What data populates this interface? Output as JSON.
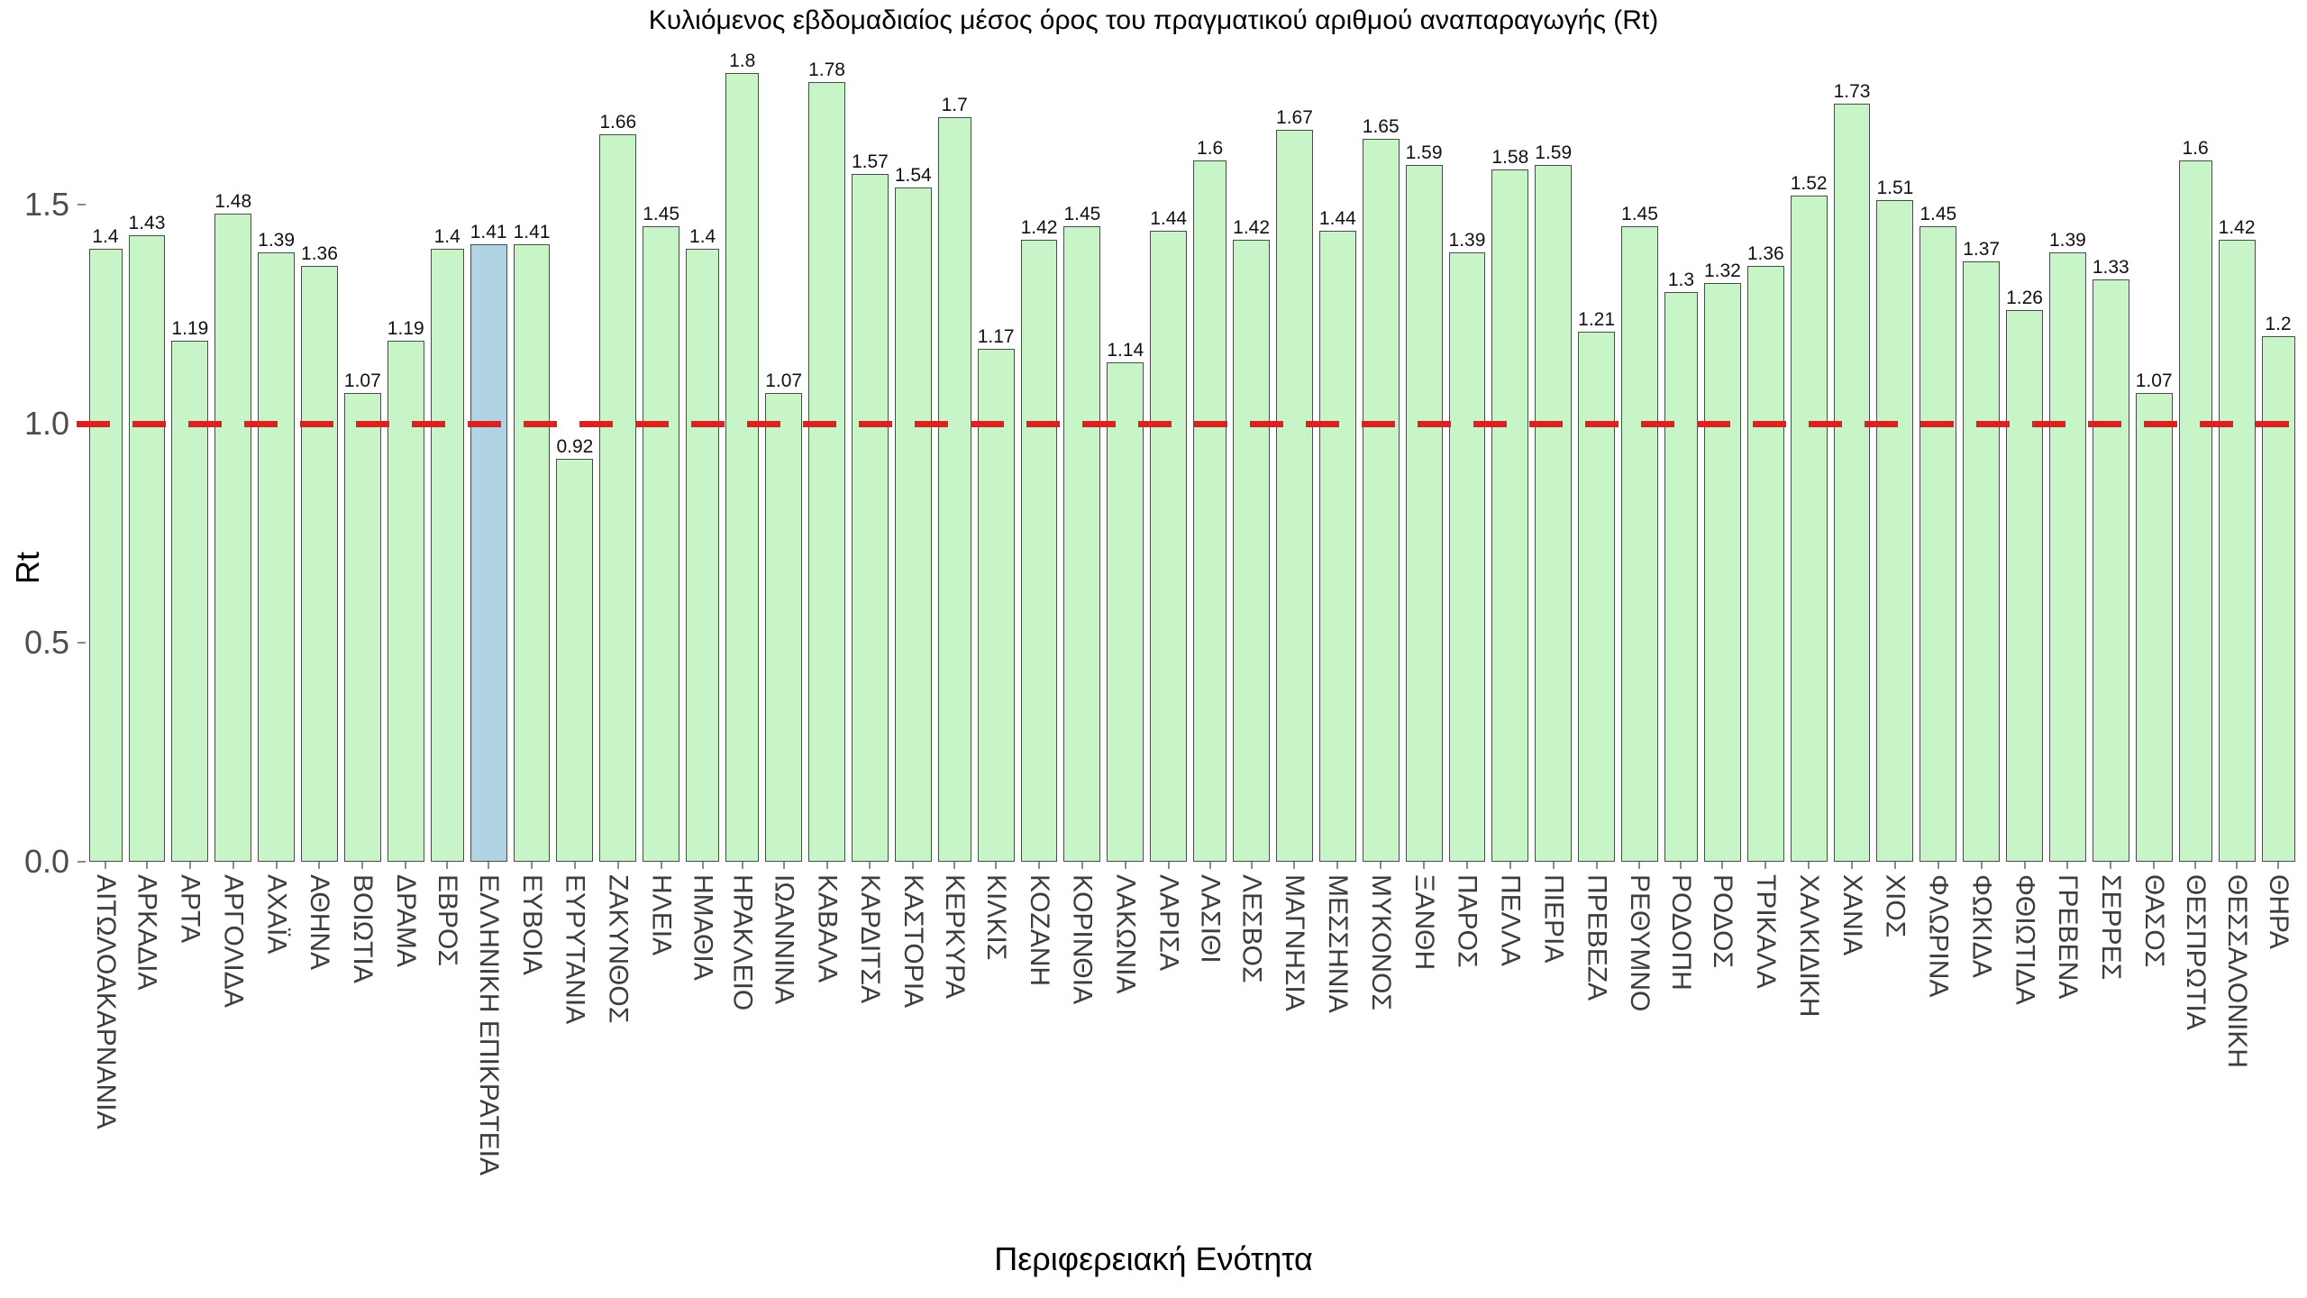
{
  "title": "Κυλιόμενος εβδομαδιαίος μέσος όρος του πραγματικού αριθμού αναπαραγωγής (Rt)",
  "y_axis": {
    "label": "Rt",
    "ticks": [
      "0.0",
      "0.5",
      "1.0",
      "1.5"
    ]
  },
  "x_axis": {
    "label": "Περιφερειακή Ενότητα"
  },
  "reference_line": {
    "value": 1.0,
    "style": "dashed",
    "color": "#dd2020"
  },
  "colors": {
    "bar_fill": "#c8f5c8",
    "bar_border": "#4a4a4a",
    "highlight_fill": "#b0d4e3",
    "reference_red": "#dd2020",
    "tick_text": "#4d4d4d",
    "x_label_text": "#3d3d3d"
  },
  "chart_data": {
    "type": "bar",
    "title": "Κυλιόμενος εβδομαδιαίος μέσος όρος του πραγματικού αριθμού αναπαραγωγής (Rt)",
    "xlabel": "Περιφερειακή Ενότητα",
    "ylabel": "Rt",
    "ylim": [
      0,
      1.85
    ],
    "grid": false,
    "value_labels": true,
    "reference_line_y": 1.0,
    "highlight_category": "ΕΛΛΗΝΙΚΗ ΕΠΙΚΡΑΤΕΙΑ",
    "highlight_index": 9,
    "categories": [
      "ΑΙΤΩΛΟΑΚΑΡΝΑΝΙΑ",
      "ΑΡΚΑΔΙΑ",
      "ΑΡΤΑ",
      "ΑΡΓΟΛΙΔΑ",
      "ΑΧΑΪΑ",
      "ΑΘΗΝΑ",
      "ΒΟΙΩΤΙΑ",
      "ΔΡΑΜΑ",
      "ΕΒΡΟΣ",
      "ΕΛΛΗΝΙΚΗ ΕΠΙΚΡΑΤΕΙΑ",
      "ΕΥΒΟΙΑ",
      "ΕΥΡΥΤΑΝΙΑ",
      "ΖΑΚΥΝΘΟΣ",
      "ΗΛΕΙΑ",
      "ΗΜΑΘΙΑ",
      "ΗΡΑΚΛΕΙΟ",
      "ΙΩΑΝΝΙΝΑ",
      "ΚΑΒΑΛΑ",
      "ΚΑΡΔΙΤΣΑ",
      "ΚΑΣΤΟΡΙΑ",
      "ΚΕΡΚΥΡΑ",
      "ΚΙΛΚΙΣ",
      "ΚΟΖΑΝΗ",
      "ΚΟΡΙΝΘΙΑ",
      "ΛΑΚΩΝΙΑ",
      "ΛΑΡΙΣΑ",
      "ΛΑΣΙΘΙ",
      "ΛΕΣΒΟΣ",
      "ΜΑΓΝΗΣΙΑ",
      "ΜΕΣΣΗΝΙΑ",
      "ΜΥΚΟΝΟΣ",
      "ΞΑΝΘΗ",
      "ΠΑΡΟΣ",
      "ΠΕΛΛΑ",
      "ΠΙΕΡΙΑ",
      "ΠΡΕΒΕΖΑ",
      "ΡΕΘΥΜΝΟ",
      "ΡΟΔΟΠΗ",
      "ΡΟΔΟΣ",
      "ΤΡΙΚΑΛΑ",
      "ΧΑΛΚΙΔΙΚΗ",
      "ΧΑΝΙΑ",
      "ΧΙΟΣ",
      "ΦΛΩΡΙΝΑ",
      "ΦΩΚΙΔΑ",
      "ΦΘΙΩΤΙΔΑ",
      "ΓΡΕΒΕΝΑ",
      "ΣΕΡΡΕΣ",
      "ΘΑΣΟΣ",
      "ΘΕΣΠΡΩΤΙΑ",
      "ΘΕΣΣΑΛΟΝΙΚΗ",
      "ΘΗΡΑ"
    ],
    "values": [
      1.4,
      1.43,
      1.19,
      1.48,
      1.39,
      1.36,
      1.07,
      1.19,
      1.4,
      1.41,
      1.41,
      0.92,
      1.66,
      1.45,
      1.4,
      1.8,
      1.07,
      1.78,
      1.57,
      1.54,
      1.7,
      1.17,
      1.42,
      1.45,
      1.14,
      1.44,
      1.6,
      1.42,
      1.67,
      1.44,
      1.65,
      1.59,
      1.39,
      1.58,
      1.59,
      1.21,
      1.45,
      1.3,
      1.32,
      1.36,
      1.52,
      1.73,
      1.51,
      1.45,
      1.37,
      1.26,
      1.39,
      1.33,
      1.07,
      1.6,
      1.42,
      1.2
    ]
  }
}
